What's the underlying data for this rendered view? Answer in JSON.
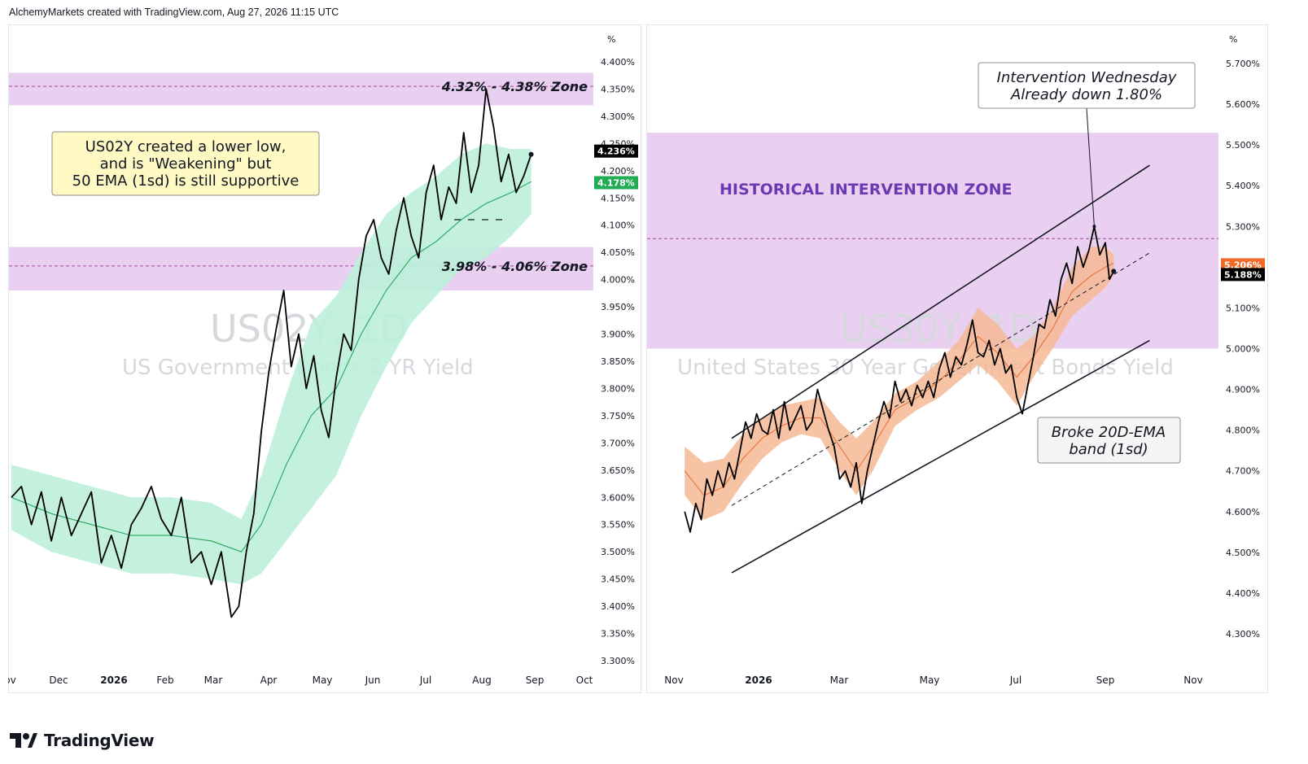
{
  "header": {
    "caption": "AlchemyMarkets created with TradingView.com, Aug 27, 2026 11:15 UTC"
  },
  "footer": {
    "brand": "TradingView"
  },
  "chart_data": [
    {
      "type": "line",
      "symbol": "US02Y",
      "timeframe": "1D",
      "watermark_symbol": "US02Y, 1D",
      "watermark_name": "US Government Bonds 2 YR Yield",
      "unit": "%",
      "ylim": [
        3.27,
        4.43
      ],
      "y_ticks": [
        3.3,
        3.35,
        3.4,
        3.45,
        3.5,
        3.55,
        3.6,
        3.65,
        3.7,
        3.75,
        3.8,
        3.85,
        3.9,
        3.95,
        4.0,
        4.05,
        4.1,
        4.15,
        4.2,
        4.25,
        4.3,
        4.35,
        4.4
      ],
      "x_ticks": [
        "Nov",
        "Dec",
        "2026",
        "Feb",
        "Mar",
        "Apr",
        "May",
        "Jun",
        "Jul",
        "Aug",
        "Sep",
        "Oct"
      ],
      "last_price": "4.236%",
      "ema_value": "4.178%",
      "price_color": "#000000",
      "ema_color": "#26a65b",
      "band_color": "#bdf0da",
      "zone_color": "#e9cff0",
      "zones": [
        {
          "label": "4.32% - 4.38% Zone",
          "low": 4.32,
          "high": 4.38,
          "mid": 4.355
        },
        {
          "label": "3.98% - 4.06% Zone",
          "low": 3.98,
          "high": 4.06,
          "mid": 4.025
        }
      ],
      "annotation": {
        "lines": [
          "US02Y created a lower low,",
          "and is \"Weakening\" but",
          "50 EMA (1sd) is still supportive"
        ]
      },
      "price_series": [
        [
          0,
          3.6
        ],
        [
          4,
          3.62
        ],
        [
          8,
          3.55
        ],
        [
          12,
          3.61
        ],
        [
          16,
          3.52
        ],
        [
          20,
          3.6
        ],
        [
          24,
          3.53
        ],
        [
          28,
          3.57
        ],
        [
          32,
          3.61
        ],
        [
          36,
          3.48
        ],
        [
          40,
          3.53
        ],
        [
          44,
          3.47
        ],
        [
          48,
          3.55
        ],
        [
          52,
          3.58
        ],
        [
          56,
          3.62
        ],
        [
          60,
          3.56
        ],
        [
          64,
          3.53
        ],
        [
          68,
          3.6
        ],
        [
          72,
          3.48
        ],
        [
          76,
          3.5
        ],
        [
          80,
          3.44
        ],
        [
          84,
          3.5
        ],
        [
          88,
          3.38
        ],
        [
          91,
          3.4
        ],
        [
          94,
          3.5
        ],
        [
          97,
          3.57
        ],
        [
          100,
          3.72
        ],
        [
          103,
          3.83
        ],
        [
          106,
          3.91
        ],
        [
          109,
          3.98
        ],
        [
          112,
          3.84
        ],
        [
          115,
          3.9
        ],
        [
          118,
          3.8
        ],
        [
          121,
          3.86
        ],
        [
          124,
          3.76
        ],
        [
          127,
          3.71
        ],
        [
          130,
          3.82
        ],
        [
          133,
          3.9
        ],
        [
          136,
          3.87
        ],
        [
          139,
          4.0
        ],
        [
          142,
          4.08
        ],
        [
          145,
          4.11
        ],
        [
          148,
          4.04
        ],
        [
          151,
          4.01
        ],
        [
          154,
          4.09
        ],
        [
          157,
          4.15
        ],
        [
          160,
          4.08
        ],
        [
          163,
          4.04
        ],
        [
          166,
          4.16
        ],
        [
          169,
          4.21
        ],
        [
          172,
          4.11
        ],
        [
          175,
          4.17
        ],
        [
          178,
          4.14
        ],
        [
          181,
          4.27
        ],
        [
          184,
          4.16
        ],
        [
          187,
          4.21
        ],
        [
          190,
          4.35
        ],
        [
          193,
          4.28
        ],
        [
          196,
          4.18
        ],
        [
          199,
          4.23
        ],
        [
          202,
          4.16
        ],
        [
          205,
          4.19
        ],
        [
          208,
          4.23
        ]
      ],
      "ema_series": [
        [
          0,
          3.6
        ],
        [
          16,
          3.57
        ],
        [
          32,
          3.55
        ],
        [
          48,
          3.53
        ],
        [
          64,
          3.53
        ],
        [
          80,
          3.52
        ],
        [
          92,
          3.5
        ],
        [
          100,
          3.55
        ],
        [
          110,
          3.66
        ],
        [
          120,
          3.75
        ],
        [
          130,
          3.8
        ],
        [
          140,
          3.9
        ],
        [
          150,
          3.98
        ],
        [
          160,
          4.04
        ],
        [
          170,
          4.07
        ],
        [
          180,
          4.11
        ],
        [
          190,
          4.14
        ],
        [
          200,
          4.16
        ],
        [
          208,
          4.18
        ]
      ],
      "band_upper": [
        [
          0,
          3.66
        ],
        [
          16,
          3.64
        ],
        [
          32,
          3.62
        ],
        [
          48,
          3.6
        ],
        [
          64,
          3.6
        ],
        [
          80,
          3.59
        ],
        [
          92,
          3.56
        ],
        [
          100,
          3.64
        ],
        [
          110,
          3.79
        ],
        [
          120,
          3.92
        ],
        [
          130,
          3.97
        ],
        [
          140,
          4.05
        ],
        [
          150,
          4.12
        ],
        [
          160,
          4.16
        ],
        [
          170,
          4.19
        ],
        [
          180,
          4.23
        ],
        [
          190,
          4.25
        ],
        [
          200,
          4.24
        ],
        [
          208,
          4.24
        ]
      ],
      "band_lower": [
        [
          0,
          3.54
        ],
        [
          16,
          3.5
        ],
        [
          32,
          3.48
        ],
        [
          48,
          3.46
        ],
        [
          64,
          3.46
        ],
        [
          80,
          3.45
        ],
        [
          92,
          3.44
        ],
        [
          100,
          3.46
        ],
        [
          110,
          3.52
        ],
        [
          120,
          3.58
        ],
        [
          130,
          3.64
        ],
        [
          140,
          3.75
        ],
        [
          150,
          3.84
        ],
        [
          160,
          3.92
        ],
        [
          170,
          3.97
        ],
        [
          180,
          4.02
        ],
        [
          190,
          4.04
        ],
        [
          200,
          4.08
        ],
        [
          208,
          4.12
        ]
      ]
    },
    {
      "type": "line",
      "symbol": "US30Y",
      "timeframe": "1D",
      "watermark_symbol": "US30Y, 1D",
      "watermark_name": "United States 30 Year Government Bonds Yield",
      "unit": "%",
      "ylim": [
        4.22,
        5.76
      ],
      "y_ticks": [
        4.3,
        4.4,
        4.5,
        4.6,
        4.7,
        4.8,
        4.9,
        5.0,
        5.1,
        5.2,
        5.3,
        5.4,
        5.5,
        5.6,
        5.7
      ],
      "x_ticks": [
        "Nov",
        "2026",
        "Mar",
        "May",
        "Jul",
        "Sep",
        "Nov"
      ],
      "last_price": "5.188%",
      "ema_value": "5.206%",
      "price_color": "#000000",
      "ema_color": "#e8743b",
      "band_color": "#f6b995",
      "zone_color": "#e9cff0",
      "zones": [
        {
          "label": "HISTORICAL INTERVENTION ZONE",
          "low": 5.0,
          "high": 5.53,
          "mid": 5.27
        }
      ],
      "annotations": [
        {
          "lines": [
            "Intervention Wednesday",
            "Already down 1.80%"
          ]
        },
        {
          "lines": [
            "Broke 20D-EMA",
            "band (1sd)"
          ]
        }
      ],
      "channel": {
        "upper": [
          [
            0,
            4.78
          ],
          [
            302,
            5.45
          ]
        ],
        "lower": [
          [
            0,
            4.45
          ],
          [
            302,
            5.02
          ]
        ],
        "mid": [
          [
            0,
            4.615
          ],
          [
            302,
            5.235
          ]
        ]
      },
      "price_series": [
        [
          -34,
          4.6
        ],
        [
          -30,
          4.55
        ],
        [
          -26,
          4.62
        ],
        [
          -22,
          4.58
        ],
        [
          -18,
          4.68
        ],
        [
          -14,
          4.64
        ],
        [
          -10,
          4.7
        ],
        [
          -6,
          4.66
        ],
        [
          -2,
          4.72
        ],
        [
          2,
          4.68
        ],
        [
          6,
          4.75
        ],
        [
          10,
          4.82
        ],
        [
          14,
          4.78
        ],
        [
          18,
          4.84
        ],
        [
          22,
          4.8
        ],
        [
          26,
          4.79
        ],
        [
          30,
          4.85
        ],
        [
          34,
          4.78
        ],
        [
          38,
          4.87
        ],
        [
          42,
          4.8
        ],
        [
          46,
          4.83
        ],
        [
          50,
          4.86
        ],
        [
          54,
          4.8
        ],
        [
          58,
          4.82
        ],
        [
          62,
          4.9
        ],
        [
          66,
          4.85
        ],
        [
          70,
          4.8
        ],
        [
          74,
          4.76
        ],
        [
          78,
          4.68
        ],
        [
          82,
          4.7
        ],
        [
          86,
          4.66
        ],
        [
          90,
          4.72
        ],
        [
          94,
          4.62
        ],
        [
          98,
          4.7
        ],
        [
          102,
          4.76
        ],
        [
          106,
          4.82
        ],
        [
          110,
          4.87
        ],
        [
          114,
          4.83
        ],
        [
          118,
          4.92
        ],
        [
          122,
          4.87
        ],
        [
          126,
          4.9
        ],
        [
          130,
          4.86
        ],
        [
          134,
          4.91
        ],
        [
          138,
          4.88
        ],
        [
          142,
          4.92
        ],
        [
          146,
          4.88
        ],
        [
          150,
          4.95
        ],
        [
          154,
          4.99
        ],
        [
          158,
          4.93
        ],
        [
          162,
          4.98
        ],
        [
          166,
          4.96
        ],
        [
          170,
          5.01
        ],
        [
          174,
          5.07
        ],
        [
          178,
          4.99
        ],
        [
          182,
          4.98
        ],
        [
          186,
          5.02
        ],
        [
          190,
          4.96
        ],
        [
          194,
          5.0
        ],
        [
          198,
          4.94
        ],
        [
          202,
          4.96
        ],
        [
          206,
          4.88
        ],
        [
          210,
          4.84
        ],
        [
          214,
          4.91
        ],
        [
          218,
          4.98
        ],
        [
          222,
          5.06
        ],
        [
          226,
          5.05
        ],
        [
          230,
          5.12
        ],
        [
          234,
          5.08
        ],
        [
          238,
          5.17
        ],
        [
          242,
          5.21
        ],
        [
          246,
          5.16
        ],
        [
          250,
          5.25
        ],
        [
          254,
          5.2
        ],
        [
          258,
          5.24
        ],
        [
          262,
          5.3
        ],
        [
          266,
          5.23
        ],
        [
          270,
          5.26
        ],
        [
          273,
          5.17
        ],
        [
          276,
          5.19
        ]
      ],
      "ema_series": [
        [
          -34,
          4.7
        ],
        [
          -20,
          4.64
        ],
        [
          -6,
          4.66
        ],
        [
          8,
          4.73
        ],
        [
          22,
          4.78
        ],
        [
          36,
          4.81
        ],
        [
          50,
          4.83
        ],
        [
          64,
          4.83
        ],
        [
          78,
          4.76
        ],
        [
          90,
          4.7
        ],
        [
          102,
          4.76
        ],
        [
          118,
          4.85
        ],
        [
          134,
          4.88
        ],
        [
          150,
          4.92
        ],
        [
          164,
          4.97
        ],
        [
          178,
          5.03
        ],
        [
          192,
          4.99
        ],
        [
          206,
          4.93
        ],
        [
          218,
          4.98
        ],
        [
          232,
          5.05
        ],
        [
          246,
          5.14
        ],
        [
          260,
          5.18
        ],
        [
          270,
          5.2
        ],
        [
          276,
          5.21
        ]
      ],
      "band_upper": [
        [
          -34,
          4.76
        ],
        [
          -20,
          4.72
        ],
        [
          -6,
          4.73
        ],
        [
          8,
          4.79
        ],
        [
          22,
          4.83
        ],
        [
          36,
          4.86
        ],
        [
          50,
          4.87
        ],
        [
          64,
          4.88
        ],
        [
          78,
          4.82
        ],
        [
          90,
          4.78
        ],
        [
          102,
          4.82
        ],
        [
          118,
          4.89
        ],
        [
          134,
          4.92
        ],
        [
          150,
          4.97
        ],
        [
          164,
          5.02
        ],
        [
          178,
          5.1
        ],
        [
          192,
          5.06
        ],
        [
          206,
          5.0
        ],
        [
          218,
          5.03
        ],
        [
          232,
          5.1
        ],
        [
          246,
          5.2
        ],
        [
          260,
          5.25
        ],
        [
          270,
          5.25
        ],
        [
          276,
          5.23
        ]
      ],
      "band_lower": [
        [
          -34,
          4.64
        ],
        [
          -20,
          4.58
        ],
        [
          -6,
          4.6
        ],
        [
          8,
          4.67
        ],
        [
          22,
          4.73
        ],
        [
          36,
          4.77
        ],
        [
          50,
          4.79
        ],
        [
          64,
          4.78
        ],
        [
          78,
          4.7
        ],
        [
          90,
          4.64
        ],
        [
          102,
          4.7
        ],
        [
          118,
          4.81
        ],
        [
          134,
          4.85
        ],
        [
          150,
          4.88
        ],
        [
          164,
          4.92
        ],
        [
          178,
          4.96
        ],
        [
          192,
          4.92
        ],
        [
          206,
          4.86
        ],
        [
          218,
          4.93
        ],
        [
          232,
          5.0
        ],
        [
          246,
          5.08
        ],
        [
          260,
          5.12
        ],
        [
          270,
          5.15
        ],
        [
          276,
          5.18
        ]
      ]
    }
  ]
}
